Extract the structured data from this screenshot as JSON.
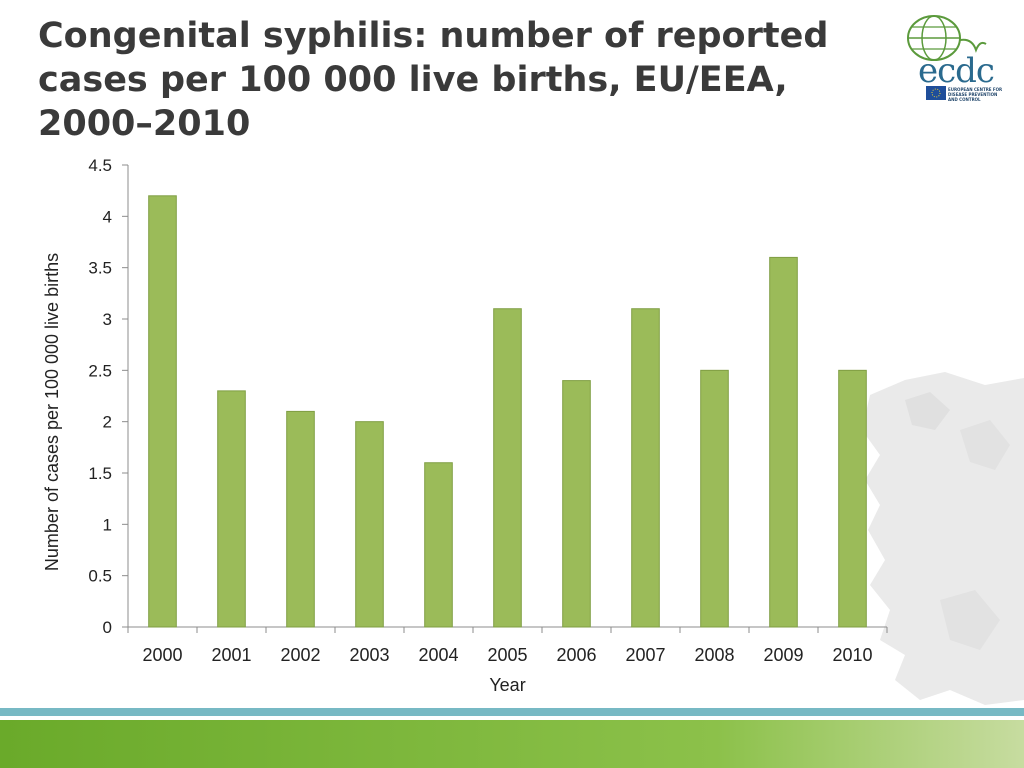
{
  "slide": {
    "title_lines": [
      "Congenital syphilis: number of reported",
      "cases per 100 000 live births, EU/EEA,",
      "2000–2010"
    ]
  },
  "logo": {
    "word": "ecdc",
    "subtitle_lines": [
      "EUROPEAN CENTRE FOR",
      "DISEASE PREVENTION",
      "AND CONTROL"
    ]
  },
  "colors": {
    "bar": "#9bbb59",
    "bar_stroke": "#7f9e43",
    "title": "#3a3a3a",
    "footer_line": "#77b9c4",
    "footer_green": "#6aaa2a"
  },
  "chart_data": {
    "type": "bar",
    "categories": [
      "2000",
      "2001",
      "2002",
      "2003",
      "2004",
      "2005",
      "2006",
      "2007",
      "2008",
      "2009",
      "2010"
    ],
    "values": [
      4.2,
      2.3,
      2.1,
      2.0,
      1.6,
      3.1,
      2.4,
      3.1,
      2.5,
      3.6,
      2.5
    ],
    "xlabel": "Year",
    "ylabel": "Number of cases per 100 000 live births",
    "ylim": [
      0,
      4.5
    ],
    "yticks": [
      "0",
      "0.5",
      "1",
      "1.5",
      "2",
      "2.5",
      "3",
      "3.5",
      "4",
      "4.5"
    ],
    "grid": false,
    "legend": "none"
  }
}
